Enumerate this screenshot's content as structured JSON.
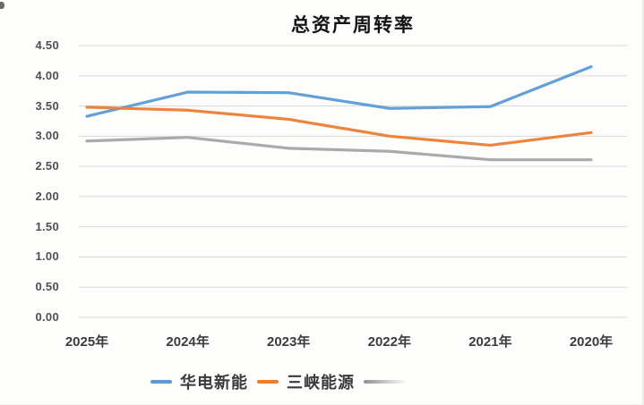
{
  "chart_data": {
    "type": "line",
    "title": "总资产周转率",
    "categories": [
      "2025年",
      "2024年",
      "2023年",
      "2022年",
      "2021年",
      "2020年"
    ],
    "series": [
      {
        "name": "华电新能",
        "color": "#5B9BD5",
        "values": [
          3.33,
          3.73,
          3.72,
          3.46,
          3.49,
          4.15
        ]
      },
      {
        "name": "三峡能源",
        "color": "#ED7D31",
        "values": [
          3.48,
          3.43,
          3.28,
          3.0,
          2.85,
          3.06
        ]
      },
      {
        "name": "",
        "color": "#A5A5A5",
        "values": [
          2.92,
          2.98,
          2.8,
          2.75,
          2.61,
          2.61
        ]
      }
    ],
    "ylim": [
      0,
      4.5
    ],
    "ytick_values": [
      0,
      0.5,
      1.0,
      1.5,
      2.0,
      2.5,
      3.0,
      3.5,
      4.0,
      4.5
    ],
    "ytick_labels": [
      "0.00",
      "0.50",
      "1.00",
      "1.50",
      "2.00",
      "2.50",
      "3.00",
      "3.50",
      "4.00",
      "4.50"
    ],
    "grid": "horizontal",
    "grid_color": "#d9d9d9",
    "legend_position": "bottom"
  }
}
